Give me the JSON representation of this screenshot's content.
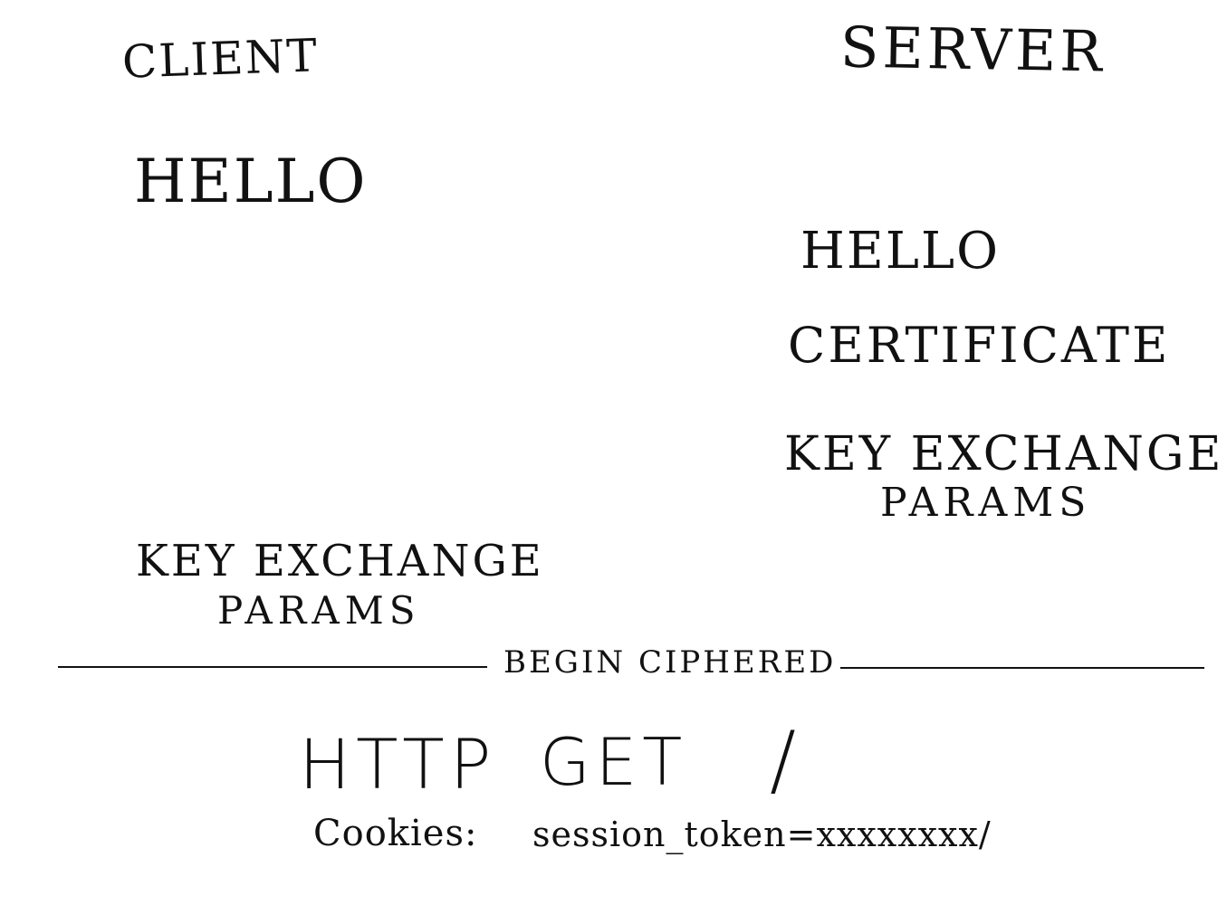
{
  "client": {
    "label": "CLIENT",
    "hello": "HELLO",
    "key_exchange": "KEY EXCHANGE",
    "params": "PARAMS"
  },
  "server": {
    "label": "SERVER",
    "hello": "HELLO",
    "certificate": "CERTIFICATE",
    "key_exchange": "KEY EXCHANGE",
    "params": "PARAMS"
  },
  "divider": {
    "label": "BEGIN CIPHERED"
  },
  "request": {
    "protocol": "HTTP",
    "method": "GET",
    "path": "/",
    "cookies_label": "Cookies:",
    "cookies_value": "session_token=xxxxxxxx/"
  },
  "colors": {
    "ink": "#111111",
    "paper": "#ffffff"
  }
}
